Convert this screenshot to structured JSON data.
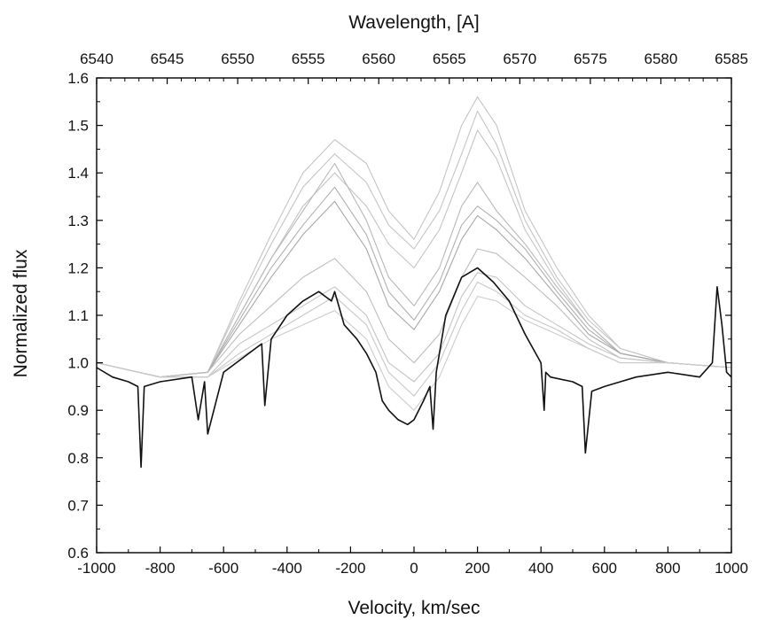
{
  "chart_data": {
    "type": "line",
    "xlabel": "Velocity, km/sec",
    "x2label": "Wavelength, [A]",
    "ylabel": "Normalized flux",
    "xlim": [
      -1000,
      1000
    ],
    "ylim": [
      0.6,
      1.6
    ],
    "x2lim": [
      6540,
      6585
    ],
    "xticks": [
      -1000,
      -800,
      -600,
      -400,
      -200,
      0,
      200,
      400,
      600,
      800,
      1000
    ],
    "xtick_labels": [
      "-1000",
      "-800",
      "-600",
      "-400",
      "-200",
      "0",
      "200",
      "400",
      "600",
      "800",
      "1000"
    ],
    "x2ticks": [
      6540,
      6545,
      6550,
      6555,
      6560,
      6565,
      6570,
      6575,
      6580,
      6585
    ],
    "x2tick_labels": [
      "6540",
      "6545",
      "6550",
      "6555",
      "6560",
      "6565",
      "6570",
      "6575",
      "6580",
      "6585"
    ],
    "yticks": [
      0.6,
      0.7,
      0.8,
      0.9,
      1.0,
      1.1,
      1.2,
      1.3,
      1.4,
      1.5,
      1.6
    ],
    "ytick_labels": [
      "0.6",
      "0.7",
      "0.8",
      "0.9",
      "1.0",
      "1.1",
      "1.2",
      "1.3",
      "1.4",
      "1.5",
      "1.6"
    ],
    "grid": false,
    "colors": {
      "highlight": "#111111",
      "others": "#b5b5b5",
      "frame": "#000000"
    },
    "series": [
      {
        "color": "#c4c4c4",
        "x": [
          -1000,
          -800,
          -650,
          -550,
          -450,
          -350,
          -250,
          -150,
          -80,
          0,
          80,
          150,
          200,
          260,
          350,
          450,
          550,
          650,
          800,
          1000
        ],
        "y": [
          1.0,
          0.97,
          0.98,
          1.13,
          1.27,
          1.4,
          1.47,
          1.42,
          1.32,
          1.26,
          1.36,
          1.5,
          1.56,
          1.5,
          1.32,
          1.2,
          1.1,
          1.03,
          1.0,
          0.99
        ]
      },
      {
        "color": "#c4c4c4",
        "x": [
          -1000,
          -800,
          -650,
          -550,
          -450,
          -350,
          -250,
          -150,
          -80,
          0,
          80,
          150,
          200,
          260,
          350,
          450,
          550,
          650,
          800,
          1000
        ],
        "y": [
          1.0,
          0.97,
          0.98,
          1.12,
          1.25,
          1.37,
          1.44,
          1.38,
          1.29,
          1.24,
          1.32,
          1.44,
          1.53,
          1.46,
          1.3,
          1.18,
          1.09,
          1.03,
          1.0,
          0.99
        ]
      },
      {
        "color": "#c4c4c4",
        "x": [
          -1000,
          -800,
          -650,
          -550,
          -450,
          -350,
          -250,
          -150,
          -80,
          0,
          80,
          150,
          200,
          260,
          350,
          450,
          550,
          650,
          800,
          1000
        ],
        "y": [
          1.0,
          0.97,
          0.98,
          1.1,
          1.22,
          1.33,
          1.4,
          1.33,
          1.25,
          1.2,
          1.28,
          1.4,
          1.49,
          1.43,
          1.28,
          1.17,
          1.08,
          1.02,
          1.0,
          0.99
        ]
      },
      {
        "color": "#b8b8b8",
        "x": [
          -1000,
          -800,
          -650,
          -550,
          -450,
          -350,
          -250,
          -150,
          -80,
          0,
          80,
          150,
          200,
          260,
          350,
          450,
          550,
          650,
          800,
          1000
        ],
        "y": [
          1.0,
          0.97,
          0.98,
          1.1,
          1.22,
          1.32,
          1.42,
          1.3,
          1.18,
          1.12,
          1.2,
          1.33,
          1.38,
          1.32,
          1.25,
          1.16,
          1.08,
          1.02,
          1.0,
          0.99
        ]
      },
      {
        "color": "#b0b0b0",
        "x": [
          -1000,
          -800,
          -650,
          -550,
          -450,
          -350,
          -250,
          -150,
          -80,
          0,
          80,
          150,
          200,
          260,
          350,
          450,
          550,
          650,
          800,
          1000
        ],
        "y": [
          1.0,
          0.97,
          0.98,
          1.09,
          1.2,
          1.29,
          1.37,
          1.27,
          1.15,
          1.09,
          1.17,
          1.29,
          1.33,
          1.3,
          1.24,
          1.15,
          1.07,
          1.02,
          1.0,
          0.99
        ]
      },
      {
        "color": "#a8a8a8",
        "x": [
          -1000,
          -800,
          -650,
          -550,
          -450,
          -350,
          -250,
          -150,
          -80,
          0,
          80,
          150,
          200,
          260,
          350,
          450,
          550,
          650,
          800,
          1000
        ],
        "y": [
          1.0,
          0.97,
          0.98,
          1.08,
          1.18,
          1.27,
          1.34,
          1.24,
          1.12,
          1.07,
          1.15,
          1.26,
          1.31,
          1.28,
          1.22,
          1.14,
          1.06,
          1.02,
          1.0,
          0.99
        ]
      },
      {
        "color": "#bdbdbd",
        "x": [
          -1000,
          -800,
          -650,
          -550,
          -450,
          -350,
          -250,
          -150,
          -80,
          0,
          80,
          150,
          200,
          260,
          350,
          450,
          550,
          650,
          800,
          1000
        ],
        "y": [
          1.0,
          0.97,
          0.98,
          1.06,
          1.12,
          1.18,
          1.22,
          1.15,
          1.05,
          1.0,
          1.06,
          1.18,
          1.24,
          1.23,
          1.18,
          1.12,
          1.05,
          1.01,
          1.0,
          0.99
        ]
      },
      {
        "color": "#c4c4c4",
        "x": [
          -1000,
          -800,
          -650,
          -550,
          -450,
          -350,
          -250,
          -150,
          -80,
          0,
          80,
          150,
          200,
          260,
          350,
          450,
          550,
          650,
          800,
          1000
        ],
        "y": [
          1.0,
          0.97,
          0.97,
          1.04,
          1.08,
          1.12,
          1.16,
          1.1,
          1.0,
          0.96,
          1.02,
          1.14,
          1.19,
          1.18,
          1.12,
          1.08,
          1.04,
          1.01,
          1.0,
          0.99
        ]
      },
      {
        "color": "#cccccc",
        "x": [
          -1000,
          -800,
          -650,
          -550,
          -450,
          -350,
          -250,
          -150,
          -80,
          0,
          80,
          150,
          200,
          260,
          350,
          450,
          550,
          650,
          800,
          1000
        ],
        "y": [
          1.0,
          0.97,
          0.97,
          1.01,
          1.05,
          1.08,
          1.11,
          1.05,
          0.95,
          0.9,
          0.97,
          1.08,
          1.14,
          1.13,
          1.09,
          1.06,
          1.03,
          1.0,
          1.0,
          0.99
        ]
      },
      {
        "color": "#c8c8c8",
        "x": [
          -1000,
          -800,
          -650,
          -550,
          -450,
          -350,
          -250,
          -150,
          -80,
          0,
          80,
          150,
          200,
          260,
          350,
          450,
          550,
          650,
          800,
          1000
        ],
        "y": [
          1.0,
          0.97,
          0.97,
          1.02,
          1.06,
          1.1,
          1.14,
          1.08,
          0.98,
          0.93,
          1.0,
          1.11,
          1.17,
          1.15,
          1.1,
          1.07,
          1.03,
          1.0,
          1.0,
          0.99
        ]
      },
      {
        "color": "#111111",
        "x": [
          -1000,
          -950,
          -900,
          -870,
          -860,
          -850,
          -800,
          -700,
          -680,
          -660,
          -650,
          -600,
          -500,
          -480,
          -470,
          -450,
          -400,
          -350,
          -300,
          -280,
          -260,
          -250,
          -220,
          -180,
          -150,
          -120,
          -100,
          -80,
          -50,
          -20,
          0,
          30,
          50,
          60,
          70,
          100,
          150,
          200,
          250,
          300,
          350,
          400,
          410,
          415,
          430,
          500,
          530,
          540,
          560,
          600,
          650,
          700,
          800,
          900,
          940,
          955,
          970,
          985,
          1000
        ],
        "y": [
          0.99,
          0.97,
          0.96,
          0.95,
          0.78,
          0.95,
          0.96,
          0.97,
          0.88,
          0.96,
          0.85,
          0.98,
          1.03,
          1.04,
          0.91,
          1.05,
          1.1,
          1.13,
          1.15,
          1.14,
          1.13,
          1.15,
          1.08,
          1.05,
          1.02,
          0.98,
          0.92,
          0.9,
          0.88,
          0.87,
          0.88,
          0.92,
          0.95,
          0.86,
          0.98,
          1.1,
          1.18,
          1.2,
          1.17,
          1.13,
          1.06,
          1.0,
          0.9,
          0.98,
          0.97,
          0.96,
          0.95,
          0.81,
          0.94,
          0.95,
          0.96,
          0.97,
          0.98,
          0.97,
          1.0,
          1.16,
          1.08,
          0.98,
          0.97
        ]
      }
    ]
  }
}
